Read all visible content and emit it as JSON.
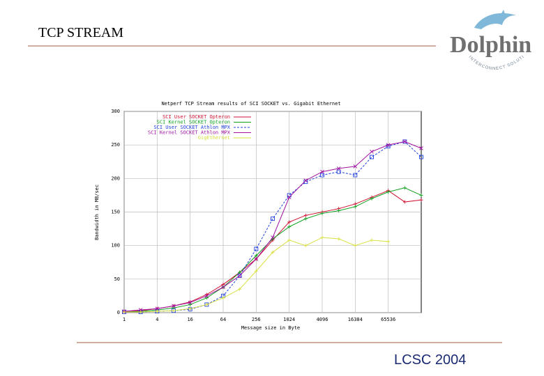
{
  "slide": {
    "title": "TCP STREAM",
    "footer": "LCSC 2004",
    "logo": "Dolphin",
    "logo_tagline": "INTERCONNECT SOLUTIONS"
  },
  "chart_data": {
    "type": "line",
    "title": "Netperf TCP Stream results of SCI SOCKET vs. Gigabit Ethernet",
    "x_label": "Message size in Byte",
    "y_label": "Bandwidth in MB/sec",
    "x": [
      1,
      2,
      4,
      8,
      16,
      32,
      64,
      128,
      256,
      512,
      1024,
      2048,
      4096,
      8192,
      16384,
      32768,
      65536,
      131072,
      262144
    ],
    "xscale": "log",
    "xlim": [
      1,
      262144
    ],
    "xticks": [
      1,
      4,
      16,
      64,
      256,
      1024,
      4096,
      16384,
      65536
    ],
    "ylim": [
      0,
      300
    ],
    "yticks": [
      0,
      50,
      100,
      150,
      200,
      250,
      300
    ],
    "grid": true,
    "legend": "top-right",
    "series": [
      {
        "name": "SCI User SOCKET Opteron",
        "color": "#d01030",
        "marker": "plus",
        "dash": false,
        "values": [
          2,
          3,
          6,
          10,
          16,
          27,
          42,
          60,
          80,
          108,
          135,
          145,
          150,
          155,
          162,
          172,
          182,
          165,
          168
        ]
      },
      {
        "name": "SCI Kernel SOCKET Opteron",
        "color": "#10a020",
        "marker": "plus",
        "dash": false,
        "values": [
          1,
          2,
          4,
          7,
          12,
          22,
          38,
          60,
          85,
          110,
          128,
          140,
          148,
          152,
          158,
          170,
          180,
          186,
          175
        ]
      },
      {
        "name": "SCI User SOCKET Athlon MPX",
        "color": "#2040e0",
        "marker": "square",
        "dash": true,
        "values": [
          1,
          1,
          2,
          3,
          5,
          12,
          25,
          55,
          95,
          140,
          175,
          195,
          205,
          210,
          205,
          232,
          248,
          255,
          232
        ]
      },
      {
        "name": "SCI Kernel SOCKET Athlon MPX",
        "color": "#a010a0",
        "marker": "cross",
        "dash": false,
        "values": [
          2,
          4,
          6,
          10,
          15,
          25,
          38,
          55,
          80,
          112,
          172,
          197,
          210,
          215,
          218,
          240,
          250,
          255,
          245
        ]
      },
      {
        "name": "GigEthernet",
        "color": "#d8e040",
        "marker": "plus",
        "dash": false,
        "values": [
          1,
          1,
          2,
          3,
          6,
          12,
          22,
          35,
          62,
          90,
          108,
          100,
          112,
          110,
          100,
          108,
          106,
          null,
          null
        ]
      }
    ]
  }
}
